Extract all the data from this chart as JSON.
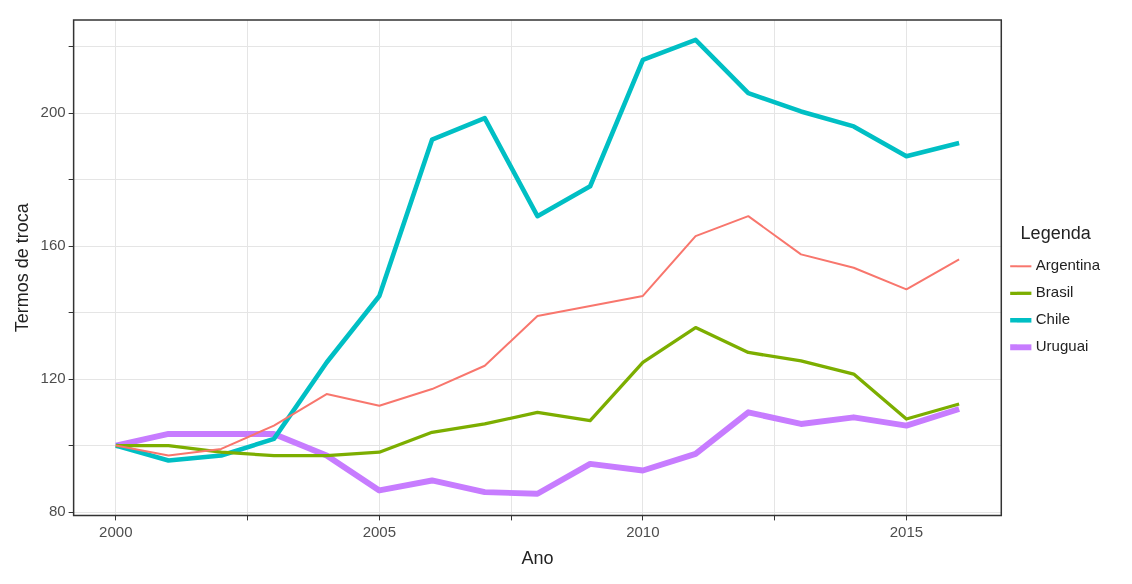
{
  "chart_data": {
    "type": "line",
    "xlabel": "Ano",
    "ylabel": "Termos de troca",
    "legend_title": "Legenda",
    "legend": "right",
    "grid": true,
    "marker": "none",
    "line_style": "solid",
    "x": [
      2000,
      2001,
      2002,
      2003,
      2004,
      2005,
      2006,
      2007,
      2008,
      2009,
      2010,
      2011,
      2012,
      2013,
      2014,
      2015,
      2016
    ],
    "xlim": [
      1999.2,
      2016.8
    ],
    "xticks": [
      2000,
      {
        "value": 2002.5,
        "label": null
      },
      2005,
      {
        "value": 2007.5,
        "label": null
      },
      2010,
      {
        "value": 2012.5,
        "label": null
      },
      2015
    ],
    "ylim": [
      79,
      228
    ],
    "yticks": [
      80,
      {
        "value": 100,
        "label": null
      },
      120,
      {
        "value": 140,
        "label": null
      },
      160,
      {
        "value": 180,
        "label": null
      },
      200,
      {
        "value": 220,
        "label": null
      }
    ],
    "series": [
      {
        "name": "Argentina",
        "color": "#f8766d",
        "values": [
          100,
          97,
          99,
          106,
          115.5,
          112,
          117,
          124,
          139,
          142,
          145,
          163,
          169,
          157.5,
          153.5,
          147,
          156
        ]
      },
      {
        "name": "Brasil",
        "color": "#7cae00",
        "values": [
          100,
          100,
          98,
          97,
          97,
          98,
          104,
          106.5,
          110,
          107.5,
          125,
          135.5,
          128,
          125.5,
          121.5,
          108,
          112.5
        ]
      },
      {
        "name": "Chile",
        "color": "#00bfc4",
        "values": [
          100,
          95.5,
          97,
          102,
          125,
          145,
          192,
          198.5,
          169,
          178,
          216,
          222,
          206,
          200.5,
          196,
          187,
          191
        ]
      },
      {
        "name": "Uruguai",
        "color": "#c77cff",
        "values": [
          100,
          103.5,
          103.5,
          103.5,
          97,
          86.5,
          89.5,
          86,
          85.5,
          94.5,
          92.5,
          97.5,
          110,
          106.5,
          108.5,
          106,
          111
        ]
      }
    ]
  }
}
